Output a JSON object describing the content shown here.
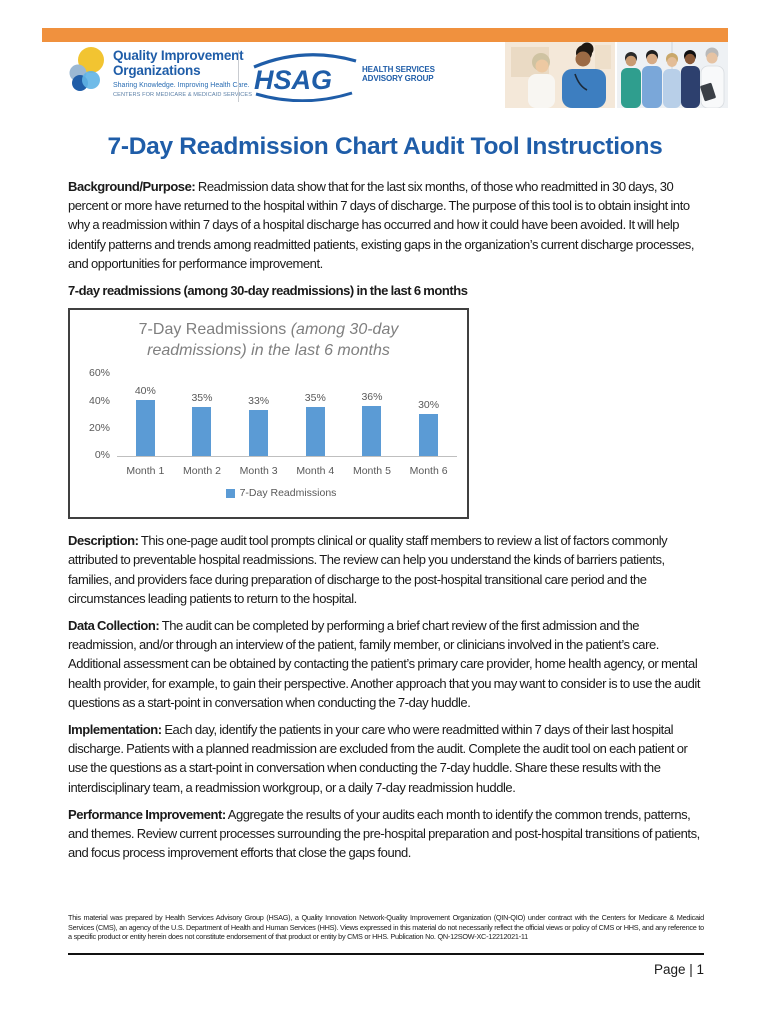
{
  "title": "7-Day Readmission Chart Audit Tool Instructions",
  "header": {
    "qio_logo": {
      "line1": "Quality Improvement",
      "line2": "Organizations",
      "tagline": "Sharing Knowledge. Improving Health Care.",
      "subtext": "CENTERS FOR MEDICARE & MEDICAID SERVICES"
    },
    "hsag_logo": {
      "acronym": "HSAG",
      "name_line1": "HEALTH SERVICES",
      "name_line2": "ADVISORY GROUP"
    }
  },
  "paragraphs": {
    "background": {
      "label": "Background/Purpose:",
      "text": "Readmission data show that for the last six months, of those who readmitted in 30 days, 30 percent or more have returned to the hospital within 7 days of discharge. The purpose of this tool is to obtain insight into why a readmission within 7 days of a hospital discharge has occurred and how it could have been avoided. It will help identify patterns and trends among readmitted patients, existing gaps in the organization’s current discharge processes, and opportunities for performance improvement."
    },
    "description": {
      "label": "Description:",
      "text": "This one-page audit tool prompts clinical or quality staff members to review a list of factors commonly attributed to preventable hospital readmissions. The review can help you understand the kinds of barriers patients, families, and providers face during preparation of discharge to the post-hospital transitional care period and the circumstances leading patients to return to the hospital."
    },
    "data_collection": {
      "label": "Data Collection:",
      "text": "The audit can be completed by performing a brief chart review of the first admission and the readmission, and/or through an interview of the patient, family member, or clinicians involved in the patient’s care. Additional assessment can be obtained by contacting the patient’s primary care provider, home health agency, or mental health provider, for example, to gain their perspective. Another approach that you may want to consider is to use the audit questions as a start-point in conversation when conducting the 7-day huddle."
    },
    "implementation": {
      "label": "Implementation:",
      "text": "Each day, identify the patients in your care who were readmitted within 7 days of their last hospital discharge. Patients with a planned readmission are excluded from the audit. Complete the audit tool on each patient or use the questions as a start-point in conversation when conducting the 7-day huddle. Share these results with the interdisciplinary team, a readmission workgroup, or a daily 7-day readmission huddle."
    },
    "performance": {
      "label": "Performance Improvement:",
      "text": "Aggregate the results of your audits each month to identify the common trends, patterns, and themes. Review current processes surrounding the pre-hospital preparation and post-hospital transitions of patients, and focus process improvement efforts that close the gaps found."
    }
  },
  "chart_heading": "7-day readmissions (among 30-day readmissions) in the last 6 months",
  "chart_data": {
    "type": "bar",
    "title_regular": "7-Day Readmissions ",
    "title_italic": "(among 30-day readmissions) in the last 6 months",
    "categories": [
      "Month 1",
      "Month 2",
      "Month 3",
      "Month 4",
      "Month 5",
      "Month 6"
    ],
    "values": [
      40,
      35,
      33,
      35,
      36,
      30
    ],
    "labels": [
      "40%",
      "35%",
      "33%",
      "35%",
      "36%",
      "30%"
    ],
    "y_ticks": [
      "60%",
      "40%",
      "20%",
      "0%"
    ],
    "ylim": [
      0,
      60
    ],
    "ylabel": "",
    "xlabel": "",
    "grid": false,
    "legend": "7-Day Readmissions",
    "legend_position": "bottom",
    "bar_color": "#5B9BD5"
  },
  "footer": {
    "disclaimer": "This material was prepared by Health Services Advisory Group (HSAG), a Quality Innovation Network-Quality Improvement Organization (QIN-QIO) under contract with the Centers for Medicare & Medicaid Services (CMS), an agency of the U.S. Department of Health and Human Services (HHS). Views expressed in this material do not necessarily reflect the official views or policy of CMS or HHS, and any reference to a specific product or entity herein does not constitute endorsement of that product or entity by CMS or HHS. Publication No. QN-12SOW-XC-12212021-11",
    "page_number": "Page | 1"
  },
  "colors": {
    "accent_orange": "#F0913E",
    "title_blue": "#1F5DA8",
    "bar_blue": "#5B9BD5",
    "chart_title_gray": "#7f7f7f"
  }
}
